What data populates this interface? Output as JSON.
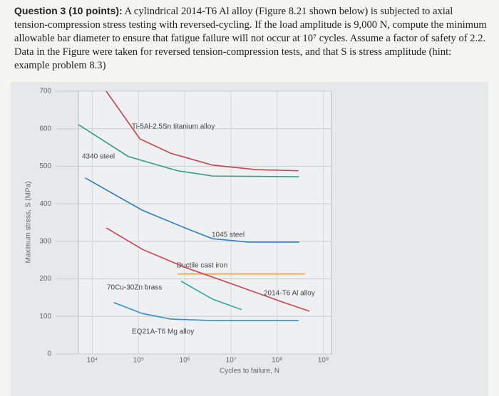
{
  "question": {
    "prefix": "Question 3 (10 points):",
    "body": " A cylindrical 2014-T6 Al alloy (Figure 8.21 shown below) is subjected to axial tension-compression stress testing with reversed-cycling. If the load amplitude is 9,000 N, compute the minimum allowable bar diameter to ensure that fatigue failure will not occur at 10⁷ cycles. Assume a factor of safety of 2.2. Data in the Figure were taken for reversed tension-compression tests, and that S is stress amplitude (hint: example problem 8.3)"
  },
  "figure": {
    "type": "line",
    "x_label": "Cycles to failure, N",
    "y_label": "Maximum stress, S (MPa)",
    "xlim": [
      5000,
      1500000000
    ],
    "ylim": [
      0,
      700
    ],
    "log_x": true,
    "grid": true,
    "xticks": [
      {
        "value": 10000,
        "label": "10⁴"
      },
      {
        "value": 100000,
        "label": "10⁵"
      },
      {
        "value": 1000000,
        "label": "10⁶"
      },
      {
        "value": 10000000,
        "label": "10⁷"
      },
      {
        "value": 100000000,
        "label": "10⁸"
      },
      {
        "value": 1000000000,
        "label": "10⁹"
      }
    ],
    "yticks": [
      0,
      100,
      200,
      300,
      400,
      500,
      600,
      700
    ],
    "series": [
      {
        "name": "Ti-5Al-2.5Sn titanium alloy",
        "color": "#c8424f",
        "x": [
          20000,
          107000,
          490000,
          4000000,
          35000000,
          290000000
        ],
        "values": [
          700,
          573,
          535,
          503,
          491,
          488
        ]
      },
      {
        "name": "4340 steel",
        "color": "#2e9e82",
        "x": [
          5000,
          60000,
          700000,
          4000000,
          300000000
        ],
        "values": [
          611,
          526,
          488,
          474,
          472
        ]
      },
      {
        "name": "1045 steel",
        "color": "#2f7fc8",
        "x": [
          7000,
          120000,
          1000000,
          4000000,
          24000000,
          300000000
        ],
        "values": [
          469,
          383,
          336,
          307,
          298,
          298
        ]
      },
      {
        "name": "Ductile cast iron",
        "color": "#e0a050",
        "x": [
          700000,
          400000000
        ],
        "values": [
          213,
          213
        ]
      },
      {
        "name": "2014-T6 Al alloy",
        "color": "#c8424f",
        "x": [
          20000,
          120000,
          1000000,
          12000000,
          140000000,
          500000000
        ],
        "values": [
          336,
          279,
          231,
          184,
          137,
          114
        ]
      },
      {
        "name": "70Cu-30Zn brass",
        "color": "#2eaa9a",
        "x": [
          830000,
          4000000,
          17000000
        ],
        "values": [
          194,
          146,
          118
        ]
      },
      {
        "name": "EQ21A-T6 Mg alloy",
        "color": "#2f8fd0",
        "x": [
          29000,
          120000,
          490000,
          4000000,
          290000000
        ],
        "values": [
          137,
          108,
          93,
          89,
          89
        ]
      }
    ]
  }
}
